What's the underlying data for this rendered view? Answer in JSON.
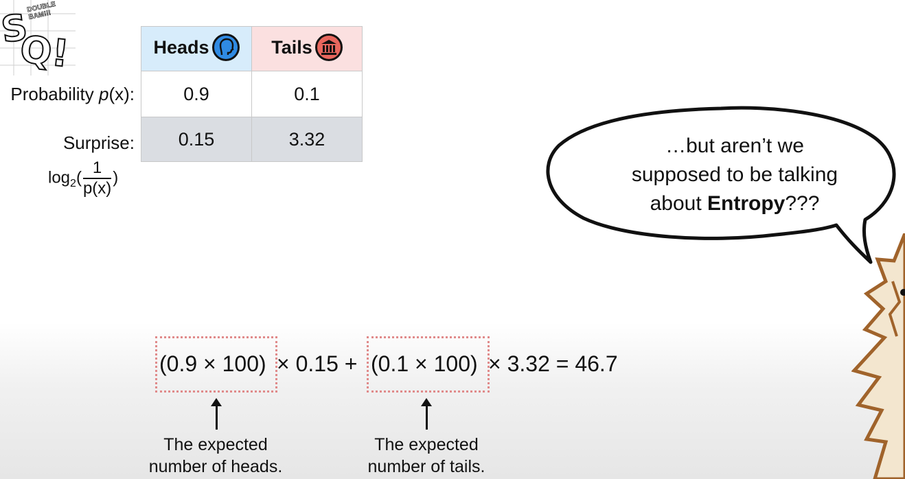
{
  "logo": {
    "letters": "SQ!",
    "tagline": "DOUBLE BAM!!!"
  },
  "table": {
    "headers": {
      "heads": "Heads",
      "tails": "Tails"
    },
    "row_labels": {
      "probability_prefix": "Probability ",
      "probability_var": "p",
      "probability_suffix": "(x):",
      "surprise": "Surprise:"
    },
    "surprise_formula": {
      "log": "log",
      "base": "2",
      "open": "(",
      "numerator": "1",
      "denominator": "p(x)",
      "close": ")"
    },
    "probability": {
      "heads": "0.9",
      "tails": "0.1"
    },
    "surprise": {
      "heads": "0.15",
      "tails": "3.32"
    }
  },
  "bubble": {
    "line1": "…but aren’t we",
    "line2": "supposed to be talking",
    "line3_prefix": "about ",
    "line3_bold": "Entropy",
    "line3_suffix": "???"
  },
  "equation": {
    "term1": "(0.9 × 100)",
    "op1": "× 0.15 +",
    "term2": "(0.1 × 100)",
    "op2": "× 3.32 = 46.7"
  },
  "captions": {
    "heads_line1": "The expected",
    "heads_line2": "number of heads.",
    "tails_line1": "The expected",
    "tails_line2": "number of tails."
  },
  "colors": {
    "heads_bg": "#d7ecfb",
    "tails_bg": "#fbe0e0",
    "surprise_row_bg": "#dadde2",
    "box_dots": "#e08a8a",
    "character": "#a0632b"
  }
}
